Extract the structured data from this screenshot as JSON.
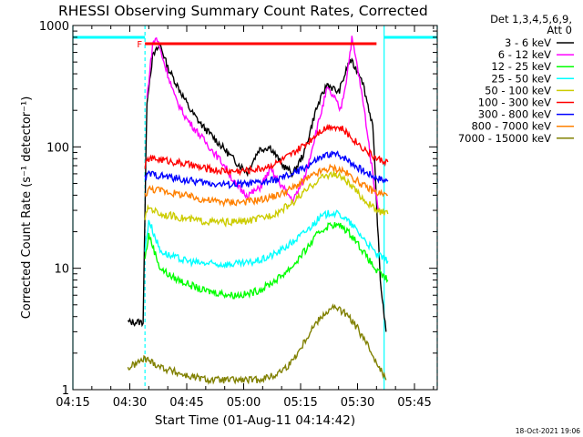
{
  "chart_data": {
    "type": "line",
    "title": "RHESSI Observing Summary Count Rates, Corrected",
    "xlabel": "Start Time (01-Aug-11 04:14:42)",
    "ylabel": "Corrected Count Rate (s⁻¹ detector⁻¹)",
    "y_scale": "log",
    "ylim": [
      1,
      1000
    ],
    "xlim_minutes": [
      0,
      96
    ],
    "x_ticks": [
      {
        "minute": 0,
        "label": "04:15"
      },
      {
        "minute": 15,
        "label": "04:30"
      },
      {
        "minute": 30,
        "label": "04:45"
      },
      {
        "minute": 45,
        "label": "05:00"
      },
      {
        "minute": 60,
        "label": "05:15"
      },
      {
        "minute": 75,
        "label": "05:30"
      },
      {
        "minute": 90,
        "label": "05:45"
      }
    ],
    "y_ticks": [
      {
        "value": 1,
        "label": "1"
      },
      {
        "value": 10,
        "label": "10"
      },
      {
        "value": 100,
        "label": "100"
      },
      {
        "value": 1000,
        "label": "1000"
      }
    ],
    "legend_header": "Det 1,3,4,5,6,9,",
    "legend_header2": "Att 0",
    "legend_position": "right",
    "footer_date": "18-Oct-2021 19:06",
    "flag_label": "F",
    "flag_interval": [
      19,
      80
    ],
    "night_intervals": [
      [
        0,
        19
      ],
      [
        82,
        96
      ]
    ],
    "series": [
      {
        "name": "3 - 6 keV",
        "color": "#000000",
        "x": [
          14.5,
          18.5,
          19.5,
          21,
          23,
          25,
          28,
          31,
          34,
          37,
          40,
          43,
          46,
          49,
          52,
          55,
          58,
          61,
          64,
          67,
          70,
          73,
          76,
          79,
          81,
          82.5
        ],
        "y": [
          3.6,
          3.6,
          240,
          550,
          700,
          450,
          300,
          200,
          150,
          120,
          95,
          75,
          62,
          95,
          100,
          72,
          60,
          90,
          200,
          330,
          280,
          520,
          380,
          150,
          8,
          3
        ]
      },
      {
        "name": "6 - 12 keV",
        "color": "#ff00ff",
        "x": [
          19.5,
          21,
          22,
          24,
          27,
          30,
          33,
          36,
          40,
          43,
          46,
          49,
          52,
          55,
          58,
          61,
          64,
          67,
          69,
          70.5,
          72,
          73.5,
          75,
          77,
          79,
          80.5
        ],
        "y": [
          250,
          700,
          800,
          500,
          250,
          170,
          130,
          100,
          70,
          48,
          40,
          45,
          65,
          48,
          36,
          55,
          130,
          300,
          250,
          200,
          350,
          780,
          450,
          180,
          60,
          30
        ]
      },
      {
        "name": "12 - 25 keV",
        "color": "#00ff00",
        "x": [
          19,
          20,
          23,
          26,
          30,
          34,
          38,
          42,
          46,
          50,
          54,
          58,
          62,
          65,
          68,
          71,
          74,
          77,
          80,
          83
        ],
        "y": [
          12,
          19,
          10,
          8.5,
          7.5,
          6.6,
          6.3,
          6,
          6.1,
          6.8,
          8.2,
          10.5,
          15,
          20,
          23,
          22,
          18,
          13,
          9.5,
          8
        ]
      },
      {
        "name": "25 - 50 keV",
        "color": "#00ffff",
        "x": [
          19,
          20,
          23,
          26,
          30,
          34,
          38,
          42,
          46,
          50,
          54,
          58,
          62,
          65,
          68,
          71,
          74,
          77,
          80,
          83
        ],
        "y": [
          14,
          25,
          14,
          12.5,
          11.5,
          11,
          10.8,
          10.8,
          11,
          11.8,
          13.5,
          16.5,
          21,
          26,
          29,
          27,
          22,
          17,
          13,
          11.5
        ]
      },
      {
        "name": "50 - 100 keV",
        "color": "#cccc00",
        "x": [
          19,
          20,
          23,
          26,
          30,
          34,
          38,
          42,
          46,
          50,
          54,
          58,
          62,
          65,
          68,
          71,
          74,
          77,
          80,
          83
        ],
        "y": [
          26,
          32,
          28,
          27,
          25.5,
          24.5,
          24,
          24,
          24.5,
          26,
          29,
          35,
          45,
          55,
          60,
          56,
          45,
          36,
          30,
          28
        ]
      },
      {
        "name": "100 - 300 keV",
        "color": "#ff0000",
        "x": [
          19,
          20,
          23,
          26,
          30,
          34,
          38,
          42,
          46,
          50,
          54,
          58,
          62,
          65,
          68,
          71,
          74,
          77,
          80,
          83
        ],
        "y": [
          70,
          80,
          79,
          76,
          72,
          67,
          64,
          63,
          64,
          67,
          74,
          88,
          110,
          135,
          150,
          140,
          115,
          95,
          80,
          75
        ]
      },
      {
        "name": "300 - 800 keV",
        "color": "#0000ff",
        "x": [
          19,
          20,
          23,
          26,
          30,
          34,
          38,
          42,
          46,
          50,
          54,
          58,
          62,
          65,
          68,
          71,
          74,
          77,
          80,
          83
        ],
        "y": [
          55,
          60,
          58,
          56,
          53,
          51,
          49.5,
          49,
          49.5,
          51,
          54,
          60,
          70,
          80,
          88,
          84,
          72,
          62,
          56,
          52
        ]
      },
      {
        "name": "800 - 7000 keV",
        "color": "#ff8000",
        "x": [
          19,
          20,
          23,
          26,
          30,
          34,
          38,
          42,
          46,
          50,
          54,
          58,
          62,
          65,
          68,
          71,
          74,
          77,
          80,
          83
        ],
        "y": [
          40,
          45,
          44,
          42,
          39.5,
          37,
          35.5,
          35,
          35.5,
          37,
          40,
          46,
          55,
          62,
          67,
          64,
          55,
          47,
          42,
          40
        ]
      },
      {
        "name": "7000 - 15000 keV",
        "color": "#808000",
        "x": [
          14.5,
          19,
          24,
          30,
          36,
          42,
          48,
          53,
          57,
          60,
          63,
          66,
          69,
          72,
          75,
          78,
          81,
          82.5
        ],
        "y": [
          1.5,
          1.8,
          1.5,
          1.3,
          1.2,
          1.2,
          1.2,
          1.3,
          1.6,
          2.2,
          3.2,
          4.2,
          4.8,
          4.2,
          3.2,
          2.2,
          1.5,
          1.2
        ]
      }
    ]
  }
}
